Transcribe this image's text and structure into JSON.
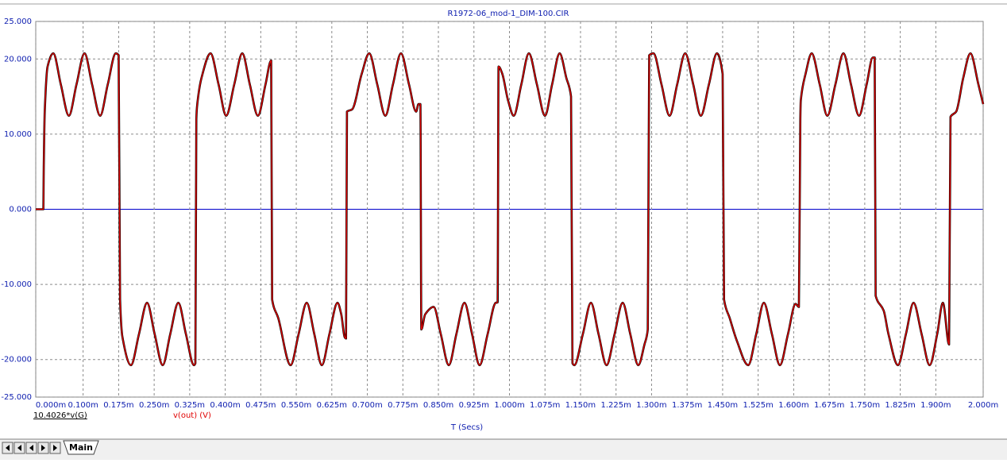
{
  "chart_data": {
    "type": "line",
    "title": "R1972-06_mod-1_DIM-100.CIR",
    "x_label": "T (Secs)",
    "xlim": [
      0,
      2.0
    ],
    "ylim": [
      -25,
      25
    ],
    "grid": true,
    "xticks": [
      {
        "value": 0,
        "label": "0.000m"
      },
      {
        "value": 0.1,
        "label": "0.100m"
      },
      {
        "value": 0.175,
        "label": "0.175m"
      },
      {
        "value": 0.25,
        "label": "0.250m"
      },
      {
        "value": 0.325,
        "label": "0.325m"
      },
      {
        "value": 0.4,
        "label": "0.400m"
      },
      {
        "value": 0.475,
        "label": "0.475m"
      },
      {
        "value": 0.55,
        "label": "0.550m"
      },
      {
        "value": 0.625,
        "label": "0.625m"
      },
      {
        "value": 0.7,
        "label": "0.700m"
      },
      {
        "value": 0.775,
        "label": "0.775m"
      },
      {
        "value": 0.85,
        "label": "0.850m"
      },
      {
        "value": 0.925,
        "label": "0.925m"
      },
      {
        "value": 1.0,
        "label": "1.000m"
      },
      {
        "value": 1.075,
        "label": "1.075m"
      },
      {
        "value": 1.15,
        "label": "1.150m"
      },
      {
        "value": 1.225,
        "label": "1.225m"
      },
      {
        "value": 1.3,
        "label": "1.300m"
      },
      {
        "value": 1.375,
        "label": "1.375m"
      },
      {
        "value": 1.45,
        "label": "1.450m"
      },
      {
        "value": 1.525,
        "label": "1.525m"
      },
      {
        "value": 1.6,
        "label": "1.600m"
      },
      {
        "value": 1.675,
        "label": "1.675m"
      },
      {
        "value": 1.75,
        "label": "1.750m"
      },
      {
        "value": 1.825,
        "label": "1.825m"
      },
      {
        "value": 1.9,
        "label": "1.900m"
      },
      {
        "value": 2.0,
        "label": "2.000m"
      }
    ],
    "yticks": [
      {
        "value": 25,
        "label": "25.000"
      },
      {
        "value": 20,
        "label": "20.000"
      },
      {
        "value": 10,
        "label": "10.000"
      },
      {
        "value": 0,
        "label": "0.000"
      },
      {
        "value": -10,
        "label": "-10.000"
      },
      {
        "value": -20,
        "label": "-20.000"
      },
      {
        "value": -25,
        "label": "-25.000"
      }
    ],
    "x": [
      0,
      0.016,
      0.017,
      0.019,
      0.025,
      0.037,
      0.053,
      0.07,
      0.086,
      0.103,
      0.119,
      0.136,
      0.152,
      0.169,
      0.175,
      0.178,
      0.183,
      0.201,
      0.218,
      0.235,
      0.251,
      0.268,
      0.284,
      0.301,
      0.317,
      0.334,
      0.337,
      0.339,
      0.341,
      0.35,
      0.369,
      0.386,
      0.402,
      0.419,
      0.436,
      0.452,
      0.469,
      0.485,
      0.497,
      0.499,
      0.512,
      0.538,
      0.555,
      0.572,
      0.588,
      0.604,
      0.62,
      0.637,
      0.645,
      0.652,
      0.655,
      0.657,
      0.668,
      0.688,
      0.704,
      0.721,
      0.738,
      0.754,
      0.771,
      0.788,
      0.803,
      0.808,
      0.812,
      0.814,
      0.822,
      0.84,
      0.855,
      0.872,
      0.888,
      0.905,
      0.921,
      0.937,
      0.954,
      0.971,
      0.975,
      0.977,
      0.985,
      0.997,
      1.009,
      1.025,
      1.041,
      1.058,
      1.075,
      1.09,
      1.106,
      1.12,
      1.13,
      1.133,
      1.137,
      1.155,
      1.172,
      1.188,
      1.205,
      1.222,
      1.239,
      1.255,
      1.272,
      1.285,
      1.292,
      1.295,
      1.304,
      1.321,
      1.338,
      1.354,
      1.371,
      1.388,
      1.404,
      1.421,
      1.438,
      1.45,
      1.453,
      1.465,
      1.48,
      1.504,
      1.521,
      1.537,
      1.554,
      1.571,
      1.588,
      1.604,
      1.611,
      1.614,
      1.615,
      1.625,
      1.638,
      1.655,
      1.671,
      1.688,
      1.705,
      1.721,
      1.738,
      1.754,
      1.767,
      1.771,
      1.773,
      1.79,
      1.8,
      1.82,
      1.837,
      1.853,
      1.87,
      1.887,
      1.903,
      1.915,
      1.928,
      1.931,
      1.943,
      1.958,
      1.973,
      1.99,
      2.0
    ],
    "series": [
      {
        "name": "10.4026*v(G)",
        "color": "#000000",
        "values": [
          0,
          0,
          6,
          13,
          19,
          20.75,
          16.6,
          12.45,
          16.6,
          20.75,
          16.6,
          12.45,
          16.6,
          20.75,
          20.5,
          -12,
          -17,
          -20.75,
          -16.6,
          -12.45,
          -16.6,
          -20.75,
          -16.6,
          -12.45,
          -16.6,
          -20.75,
          -20.5,
          12,
          14,
          17.5,
          20.75,
          16.6,
          12.45,
          16.6,
          20.75,
          16.6,
          12.45,
          16.6,
          19.8,
          -12,
          -14.5,
          -20.75,
          -16.6,
          -12.45,
          -16.6,
          -20.75,
          -16.6,
          -12.45,
          -14,
          -17,
          -17.2,
          13,
          13.3,
          18,
          20.75,
          16.6,
          12.45,
          16.6,
          20.75,
          16.6,
          13,
          14,
          14,
          -16,
          -14,
          -13,
          -16.6,
          -20.75,
          -16.6,
          -12.45,
          -16.6,
          -20.75,
          -16.6,
          -12.45,
          -12.4,
          19,
          18,
          14.5,
          12.45,
          16.6,
          20.75,
          16.6,
          12.45,
          16.6,
          20.75,
          17.5,
          15,
          -20.5,
          -20.75,
          -16.6,
          -12.45,
          -16.6,
          -20.75,
          -16.6,
          -12.45,
          -16.6,
          -20.75,
          -18,
          -16,
          20.5,
          20.75,
          16.6,
          12.45,
          16.6,
          20.75,
          16.6,
          12.45,
          16.6,
          20.75,
          18,
          -12,
          -14.5,
          -17.5,
          -20.75,
          -16.6,
          -12.45,
          -16.6,
          -20.75,
          -16.6,
          -12.6,
          -13,
          12,
          14.5,
          18,
          20.75,
          16.6,
          12.45,
          16.6,
          20.75,
          16.6,
          12.45,
          16.6,
          20.2,
          20.2,
          -11.5,
          -13.5,
          -16.6,
          -20.75,
          -16.6,
          -12.45,
          -16.6,
          -20.75,
          -16.6,
          -12.45,
          -18,
          12.3,
          13,
          17.5,
          20.75,
          16.6,
          14
        ]
      },
      {
        "name": "v(out) (V)",
        "color": "#e00000",
        "values": [
          0,
          0,
          6,
          13,
          19,
          20.75,
          16.6,
          12.45,
          16.6,
          20.75,
          16.6,
          12.45,
          16.6,
          20.75,
          20.5,
          -12,
          -17,
          -20.75,
          -16.6,
          -12.45,
          -16.6,
          -20.75,
          -16.6,
          -12.45,
          -16.6,
          -20.75,
          -20.5,
          12,
          14,
          17.5,
          20.75,
          16.6,
          12.45,
          16.6,
          20.75,
          16.6,
          12.45,
          16.6,
          19.8,
          -12,
          -14.5,
          -20.75,
          -16.6,
          -12.45,
          -16.6,
          -20.75,
          -16.6,
          -12.45,
          -14,
          -17,
          -17.2,
          13,
          13.3,
          18,
          20.75,
          16.6,
          12.45,
          16.6,
          20.75,
          16.6,
          13,
          14,
          14,
          -16,
          -14,
          -13,
          -16.6,
          -20.75,
          -16.6,
          -12.45,
          -16.6,
          -20.75,
          -16.6,
          -12.45,
          -12.4,
          19,
          18,
          14.5,
          12.45,
          16.6,
          20.75,
          16.6,
          12.45,
          16.6,
          20.75,
          17.5,
          15,
          -20.5,
          -20.75,
          -16.6,
          -12.45,
          -16.6,
          -20.75,
          -16.6,
          -12.45,
          -16.6,
          -20.75,
          -18,
          -16,
          20.5,
          20.75,
          16.6,
          12.45,
          16.6,
          20.75,
          16.6,
          12.45,
          16.6,
          20.75,
          18,
          -12,
          -14.5,
          -17.5,
          -20.75,
          -16.6,
          -12.45,
          -16.6,
          -20.75,
          -16.6,
          -12.6,
          -13,
          12,
          14.5,
          18,
          20.75,
          16.6,
          12.45,
          16.6,
          20.75,
          16.6,
          12.45,
          16.6,
          20.2,
          20.2,
          -11.5,
          -13.5,
          -16.6,
          -20.75,
          -16.6,
          -12.45,
          -16.6,
          -20.75,
          -16.6,
          -12.45,
          -18,
          12.3,
          13,
          17.5,
          20.75,
          16.6,
          14
        ]
      }
    ]
  },
  "tabs": [
    "Main"
  ]
}
